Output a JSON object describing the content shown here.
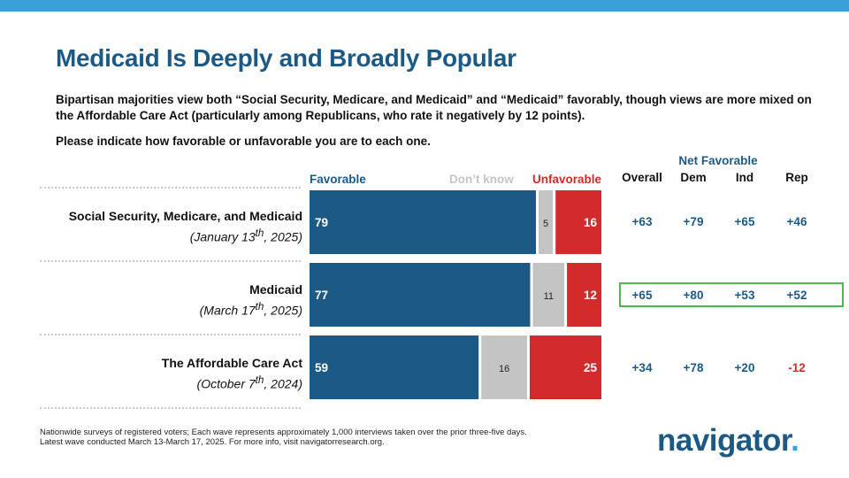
{
  "title": "Medicaid Is Deeply and Broadly Popular",
  "subtitle": "Bipartisan majorities view both “Social Security, Medicare, and Medicaid” and “Medicaid” favorably, though views are more mixed on the Affordable Care Act (particularly among Republicans, who rate it negatively by 12 points).",
  "question": "Please indicate how favorable or unfavorable you are to each one.",
  "legend": {
    "favorable": "Favorable",
    "dont_know": "Don’t know",
    "unfavorable": "Unfavorable"
  },
  "net_header": "Net Favorable",
  "net_columns": [
    "Overall",
    "Dem",
    "Ind",
    "Rep"
  ],
  "colors": {
    "favorable": "#1c5a85",
    "dont_know": "#c4c4c4",
    "unfavorable": "#d32b2b",
    "highlight": "#4cb84c",
    "accent": "#3aa0d8"
  },
  "rows": [
    {
      "name": "Social Security, Medicare, and Medicaid",
      "date_prefix": "(January 13",
      "date_sup": "th",
      "date_suffix": ", 2025)",
      "net": [
        "+63",
        "+79",
        "+65",
        "+46"
      ]
    },
    {
      "name": "Medicaid",
      "date_prefix": "(March 17",
      "date_sup": "th",
      "date_suffix": ", 2025)",
      "net": [
        "+65",
        "+80",
        "+53",
        "+52"
      ]
    },
    {
      "name": "The Affordable Care Act",
      "date_prefix": "(October 7",
      "date_sup": "th",
      "date_suffix": ", 2024)",
      "net": [
        "+34",
        "+78",
        "+20",
        "-12"
      ]
    }
  ],
  "chart_data": {
    "type": "bar",
    "orientation": "horizontal",
    "stacked": true,
    "categories": [
      "Social Security, Medicare, and Medicaid",
      "Medicaid",
      "The Affordable Care Act"
    ],
    "series": [
      {
        "name": "Favorable",
        "values": [
          79,
          77,
          59
        ]
      },
      {
        "name": "Don’t know",
        "values": [
          5,
          11,
          16
        ]
      },
      {
        "name": "Unfavorable",
        "values": [
          16,
          12,
          25
        ]
      }
    ],
    "xlim": [
      0,
      100
    ]
  },
  "footnote": {
    "line1": "Nationwide surveys of registered voters; Each wave represents approximately 1,000 interviews taken over the prior three-five days.",
    "line2": "Latest wave conducted March 13-March 17, 2025. For more info, visit navigatorresearch.org."
  },
  "logo": {
    "text": "navigator",
    "dot": "."
  }
}
